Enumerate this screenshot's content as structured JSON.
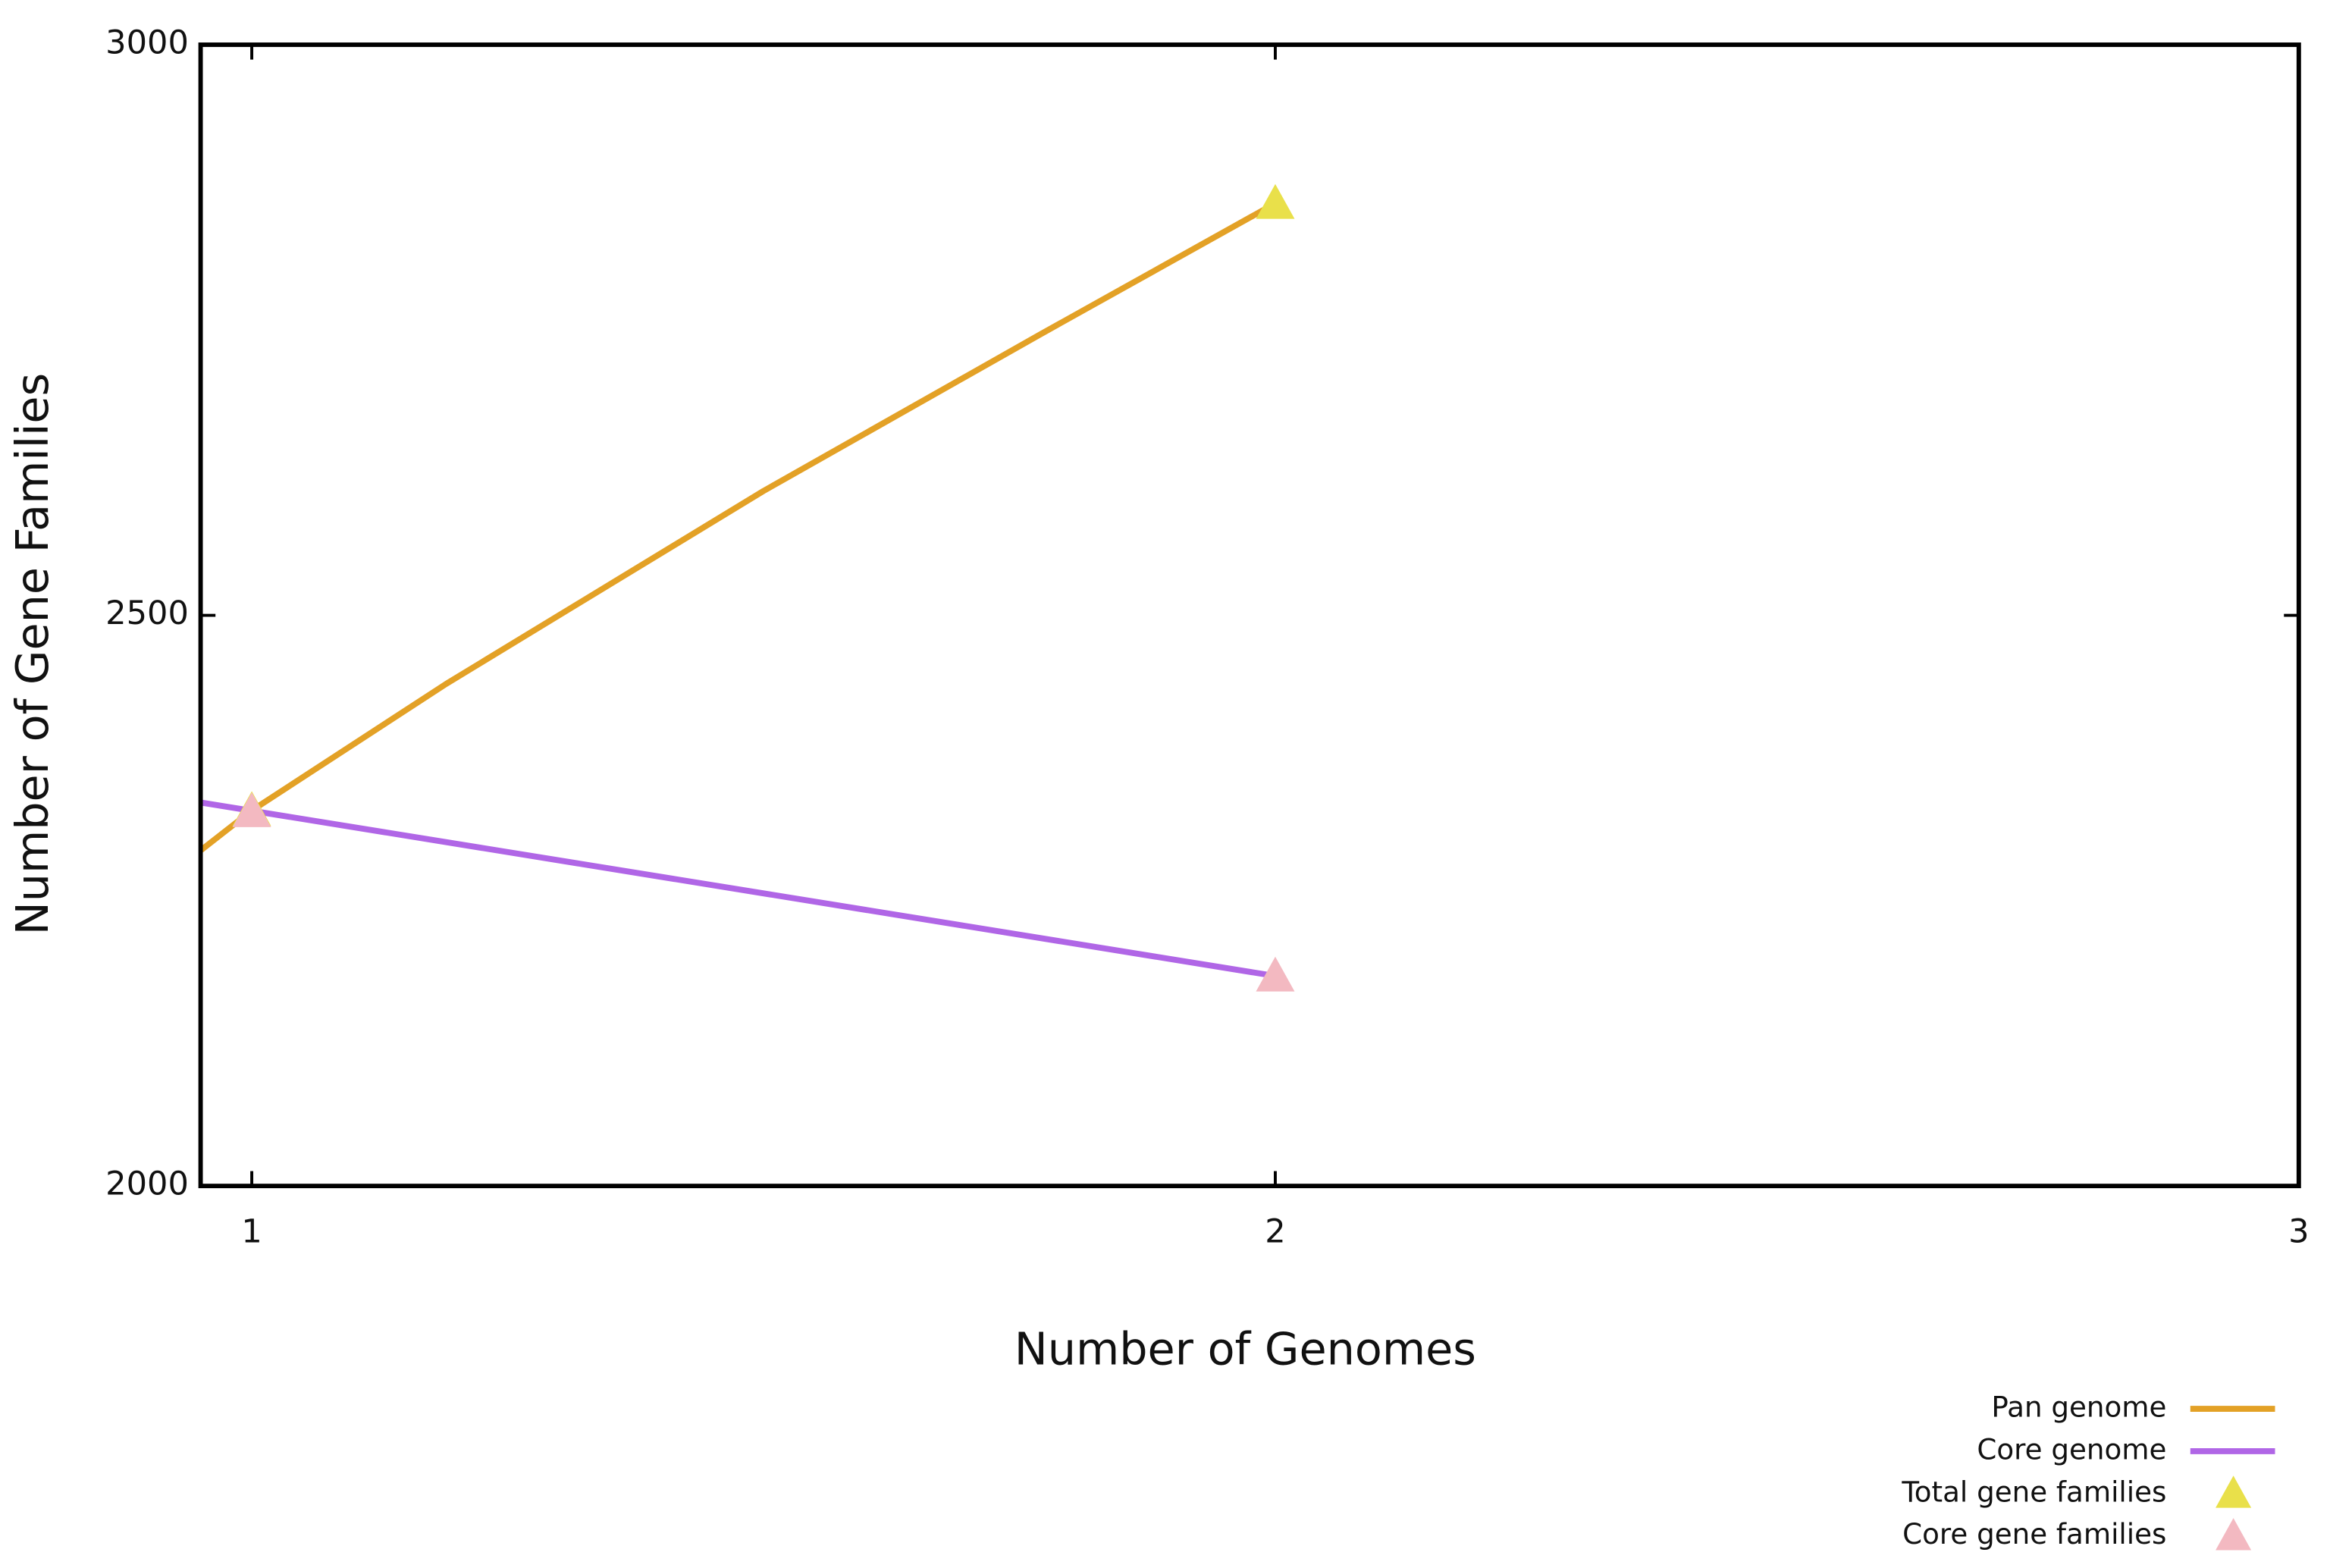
{
  "chart_data": {
    "type": "line",
    "x_label": "Number of Genomes",
    "y_label": "Number of Gene Families",
    "xlim": [
      0.95,
      3
    ],
    "ylim": [
      2000,
      3000
    ],
    "xticks": [
      1,
      2,
      3
    ],
    "yticks": [
      2000,
      2500,
      3000
    ],
    "legend": "bottom right",
    "series": [
      {
        "name": "Pan genome",
        "color": "#e3a126",
        "mode": "line",
        "x": [
          0.95,
          1,
          1.19,
          1.5,
          1.77,
          2
        ],
        "values": [
          2294,
          2329,
          2440,
          2609,
          2746,
          2861
        ]
      },
      {
        "name": "Core genome",
        "color": "#b066e6",
        "mode": "line",
        "x": [
          0.95,
          2
        ],
        "values": [
          2336,
          2184
        ]
      },
      {
        "name": "Total gene families",
        "color": "#e9e04a",
        "mode": "markers",
        "x": [
          1,
          2
        ],
        "values": [
          2329,
          2861
        ]
      },
      {
        "name": "Core gene families",
        "color": "#f3b9c1",
        "mode": "markers",
        "x": [
          1,
          2
        ],
        "values": [
          2328,
          2184
        ]
      }
    ]
  }
}
